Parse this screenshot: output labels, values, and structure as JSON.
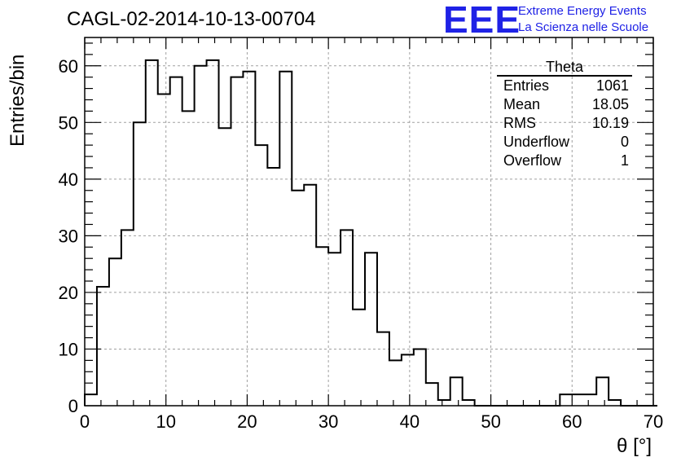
{
  "title": "CAGL-02-2014-10-13-00704",
  "logo": {
    "mark": "EEE",
    "line1": "Extreme Energy Events",
    "line2": "La Scienza nelle Scuole",
    "color": "#1f22e6"
  },
  "stats": {
    "title": "Theta",
    "rows": [
      {
        "label": "Entries",
        "value": "1061"
      },
      {
        "label": "Mean",
        "value": "18.05"
      },
      {
        "label": "RMS",
        "value": "10.19"
      },
      {
        "label": "Underflow",
        "value": "0"
      },
      {
        "label": "Overflow",
        "value": "1"
      }
    ]
  },
  "chart_data": {
    "type": "histogram",
    "title": "CAGL-02-2014-10-13-00704",
    "xlabel": "θ [°]",
    "ylabel": "Entries/bin",
    "xlim": [
      0,
      70
    ],
    "ylim": [
      0,
      65
    ],
    "xticks": [
      0,
      10,
      20,
      30,
      40,
      50,
      60,
      70
    ],
    "yticks": [
      0,
      10,
      20,
      30,
      40,
      50,
      60
    ],
    "grid": true,
    "bin_width": 1.5,
    "bins_start": 0,
    "values": [
      2,
      21,
      26,
      31,
      50,
      61,
      55,
      58,
      52,
      60,
      61,
      49,
      58,
      59,
      46,
      42,
      59,
      38,
      39,
      28,
      27,
      31,
      17,
      27,
      13,
      8,
      9,
      10,
      4,
      1,
      5,
      1,
      0,
      0,
      0,
      0,
      0,
      0,
      0,
      2,
      2,
      2,
      5,
      1,
      0,
      0,
      0
    ],
    "line_color": "#000000"
  }
}
